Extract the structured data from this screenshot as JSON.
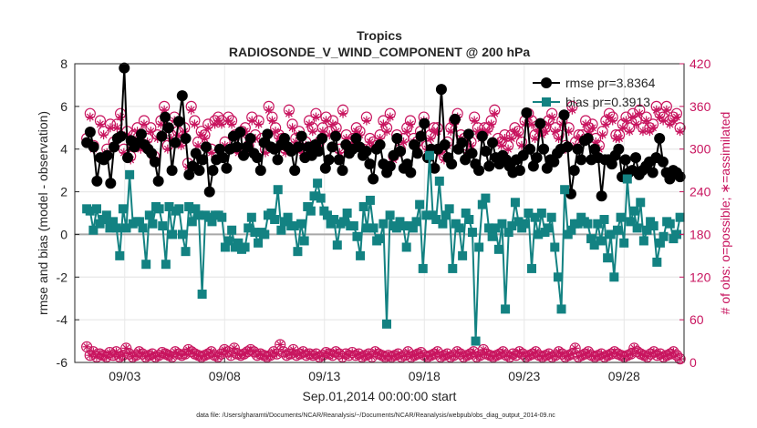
{
  "chart_data": {
    "type": "line",
    "title": "Tropics",
    "subtitle": "RADIOSONDE_V_WIND_COMPONENT @ 200 hPa",
    "xlabel": "Sep.01,2014 00:00:00 start",
    "ylabel_left": "rmse and bias (model - observation)",
    "ylabel_right": "# of obs: o=possible; ∗=assimilated",
    "footnote": "data file: /Users/gharamti/Documents/NCAR/Reanalysis/~/Documents/NCAR/Reanalysis/webpub/obs_diag_output_2014-09.nc",
    "xlim": [
      1,
      31.5
    ],
    "ylim_left": [
      -6,
      8
    ],
    "ylim_right": [
      0,
      420
    ],
    "x_ticks": [
      {
        "x": 3.5,
        "label": "09/03"
      },
      {
        "x": 8.5,
        "label": "09/08"
      },
      {
        "x": 13.5,
        "label": "09/13"
      },
      {
        "x": 18.5,
        "label": "09/18"
      },
      {
        "x": 23.5,
        "label": "09/23"
      },
      {
        "x": 28.5,
        "label": "09/28"
      }
    ],
    "y_ticks_left": [
      "-6",
      "-4",
      "-2",
      "0",
      "2",
      "4",
      "6",
      "8"
    ],
    "y_ticks_right": [
      "0",
      "60",
      "120",
      "180",
      "240",
      "300",
      "360",
      "420"
    ],
    "grid": true,
    "legend_position": "top-right",
    "colors": {
      "rmse": "#000000",
      "bias": "#138282",
      "obs": "#c8155f",
      "zero_line": "#a8a8a8",
      "grid": "#e8e8e8"
    },
    "series": [
      {
        "name": "rmse",
        "legend": "rmse pr=3.8364",
        "values": [
          4.3,
          4.8,
          4.1,
          2.5,
          3.6,
          3.5,
          3.7,
          2.4,
          4.1,
          4.5,
          4.6,
          7.8,
          3.6,
          4.4,
          4.1,
          4.3,
          4.7,
          4.2,
          4.0,
          3.8,
          3.4,
          2.5,
          4.6,
          5.5,
          5.0,
          3.0,
          4.3,
          5.3,
          6.5,
          4.5,
          2.8,
          3.2,
          3.8,
          3.0,
          3.5,
          4.1,
          2.0,
          3.0,
          3.5,
          4.0,
          3.6,
          3.1,
          4.0,
          4.6,
          4.1,
          4.8,
          3.7,
          4.1,
          4.5,
          3.8,
          3.6,
          3.0,
          4.3,
          4.7,
          4.1,
          4.0,
          3.5,
          4.2,
          4.5,
          4.1,
          3.9,
          3.0,
          4.1,
          4.6,
          3.6,
          4.1,
          3.7,
          4.2,
          3.9,
          4.5,
          3.1,
          3.5,
          4.1,
          4.6,
          3.5,
          3.0,
          4.2,
          3.8,
          4.0,
          4.5,
          4.1,
          3.7,
          3.9,
          3.3,
          2.6,
          4.0,
          4.2,
          3.3,
          2.9,
          3.2,
          3.7,
          4.5,
          3.9,
          3.1,
          3.3,
          2.9,
          4.2,
          3.8,
          4.6,
          5.2,
          3.6,
          4.0,
          3.1,
          4.0,
          6.8,
          4.2,
          3.6,
          3.3,
          5.4,
          4.0,
          4.3,
          3.5,
          4.7,
          3.8,
          3.3,
          3.0,
          4.6,
          3.9,
          3.2,
          4.3,
          3.6,
          3.3,
          3.7,
          3.5,
          3.2,
          2.9,
          3.5,
          3.0,
          3.7,
          5.7,
          4.0,
          3.2,
          3.6,
          5.2,
          4.0,
          3.1,
          3.5,
          3.4,
          3.8,
          4.0,
          5.6,
          4.1,
          1.9,
          3.0,
          4.0,
          3.5,
          4.4,
          4.5,
          3.5,
          4.0,
          3.6,
          1.8,
          3.5,
          3.5,
          3.3,
          3.7,
          4.0,
          2.7,
          3.5,
          2.9,
          3.0,
          3.6,
          2.8,
          3.0,
          3.2,
          3.4,
          2.9,
          3.6,
          4.5,
          3.4,
          2.9,
          2.6,
          3.0,
          2.9,
          2.7
        ]
      },
      {
        "name": "bias",
        "legend": "bias pr=0.3913",
        "values": [
          1.2,
          1.1,
          0.2,
          1.2,
          0.5,
          0.7,
          0.9,
          0.3,
          0.6,
          0.3,
          -1.0,
          1.2,
          0.3,
          2.8,
          0.5,
          0.6,
          0.6,
          0.3,
          -1.4,
          0.9,
          0.5,
          1.3,
          1.2,
          0.4,
          -1.4,
          1.3,
          0.0,
          1.1,
          1.2,
          0.0,
          -0.8,
          1.3,
          0.6,
          1.2,
          0.9,
          -2.8,
          0.9,
          0.8,
          0.6,
          0.9,
          0.9,
          0.8,
          -0.6,
          -0.3,
          0.2,
          -0.6,
          -0.4,
          -0.7,
          -0.6,
          0.3,
          0.8,
          0.1,
          -0.4,
          0.1,
          0.0,
          0.9,
          1.0,
          0.7,
          2.1,
          0.2,
          0.6,
          0.8,
          0.4,
          0.4,
          -0.8,
          0.5,
          -0.3,
          1.3,
          1.1,
          1.8,
          2.4,
          1.7,
          1.1,
          0.9,
          0.5,
          0.7,
          -0.5,
          0.5,
          0.6,
          1.0,
          0.4,
          0.4,
          -0.1,
          -1.0,
          1.3,
          0.3,
          1.6,
          0.3,
          -0.3,
          -0.2,
          0.5,
          -4.2,
          0.9,
          0.4,
          0.3,
          0.6,
          0.4,
          -0.6,
          0.4,
          0.3,
          0.6,
          1.4,
          -1.6,
          0.9,
          3.7,
          0.9,
          0.7,
          2.5,
          0.5,
          0.9,
          1.2,
          -1.6,
          0.5,
          0.3,
          -1.0,
          1.0,
          0.7,
          0.1,
          -5.0,
          -0.6,
          1.4,
          1.7,
          0.3,
          -0.1,
          0.3,
          -0.7,
          0.5,
          -3.5,
          0.1,
          0.4,
          1.5,
          0.6,
          0.3,
          0.5,
          1.0,
          -1.6,
          0.8,
          0.0,
          1.0,
          0.1,
          0.3,
          0.8,
          -0.6,
          -2.0,
          -3.5,
          2.1,
          0.0,
          0.2,
          0.5,
          0.5,
          0.8,
          0.6,
          0.5,
          -0.2,
          -0.5,
          0.5,
          -0.3,
          0.7,
          -1.1,
          0.0,
          -2.0,
          0.2,
          0.8,
          -0.4,
          2.6,
          0.6,
          1.1,
          0.3,
          1.5,
          -0.3,
          0.2,
          0.6,
          0.4,
          -1.3,
          -0.4,
          -0.1,
          0.6,
          0.5,
          -0.2,
          0.0,
          0.8
        ]
      },
      {
        "name": "obs_possible",
        "marker": "o",
        "values": [
          315,
          350,
          305,
          0,
          340,
          325,
          300,
          335,
          310,
          335,
          350,
          300,
          325,
          290,
          320,
          330,
          305,
          340,
          315,
          330,
          290,
          320,
          340,
          360,
          305,
          320,
          345,
          325,
          310,
          330,
          280,
          360,
          340,
          310,
          325,
          320,
          335,
          300,
          340,
          345,
          340,
          310,
          345,
          340,
          320,
          300,
          325,
          330,
          305,
          345,
          320,
          340,
          315,
          300,
          360,
          345,
          330,
          320,
          315,
          300,
          355,
          335,
          315,
          325,
          300,
          310,
          340,
          330,
          350,
          310,
          330,
          345,
          325,
          340,
          330,
          300,
          355,
          320,
          310,
          315,
          330,
          325,
          300,
          345,
          315,
          310,
          305,
          320,
          340,
          330,
          350,
          290,
          320,
          300,
          315,
          330,
          340,
          315,
          310,
          325,
          345,
          305,
          320,
          330,
          330,
          300,
          290,
          310,
          330,
          340,
          350,
          320,
          315,
          300,
          310,
          345,
          330,
          320,
          330,
          330,
          340,
          355,
          315,
          310,
          320,
          305,
          320,
          330,
          325,
          310,
          340,
          350,
          340,
          320,
          330,
          325,
          330,
          340,
          350,
          330,
          320,
          340,
          305,
          330,
          360,
          310,
          320,
          320,
          340,
          330,
          335,
          315,
          305,
          325,
          340,
          350,
          345,
          320,
          320,
          335,
          345,
          330,
          350,
          340,
          355,
          330,
          345,
          330,
          335,
          360,
          350,
          345,
          360,
          340,
          345,
          350,
          330
        ]
      },
      {
        "name": "obs_assimilated",
        "marker": "*",
        "values": [
          310,
          345,
          300,
          0,
          335,
          320,
          295,
          330,
          305,
          330,
          345,
          295,
          320,
          285,
          315,
          325,
          300,
          335,
          310,
          325,
          285,
          315,
          335,
          355,
          300,
          315,
          340,
          320,
          305,
          325,
          275,
          355,
          335,
          305,
          320,
          315,
          330,
          295,
          335,
          340,
          335,
          305,
          340,
          335,
          315,
          295,
          320,
          325,
          300,
          340,
          315,
          335,
          310,
          295,
          355,
          340,
          325,
          315,
          310,
          295,
          350,
          330,
          310,
          320,
          295,
          305,
          335,
          325,
          345,
          305,
          325,
          340,
          320,
          335,
          325,
          295,
          350,
          315,
          305,
          310,
          325,
          320,
          295,
          340,
          310,
          305,
          300,
          315,
          335,
          325,
          345,
          285,
          315,
          295,
          310,
          325,
          335,
          310,
          305,
          320,
          340,
          300,
          315,
          325,
          325,
          295,
          285,
          305,
          325,
          335,
          345,
          315,
          310,
          295,
          305,
          340,
          325,
          315,
          325,
          325,
          335,
          350,
          310,
          305,
          315,
          300,
          315,
          325,
          320,
          305,
          335,
          345,
          335,
          315,
          325,
          320,
          325,
          335,
          345,
          325,
          315,
          335,
          300,
          325,
          355,
          305,
          315,
          315,
          335,
          325,
          330,
          310,
          300,
          320,
          335,
          345,
          340,
          315,
          315,
          330,
          340,
          325,
          345,
          335,
          350,
          325,
          340,
          325,
          330,
          355,
          345,
          340,
          355,
          335,
          340,
          345,
          325
        ]
      },
      {
        "name": "obs_bottom_possible",
        "marker": "o",
        "values": [
          22,
          10,
          15,
          8,
          12,
          10,
          8,
          14,
          10,
          15,
          8,
          10,
          20,
          12,
          8,
          10,
          15,
          12,
          8,
          10,
          12,
          8,
          10,
          14,
          12,
          10,
          8,
          15,
          12,
          10,
          12,
          18,
          15,
          12,
          10,
          8,
          10,
          12,
          15,
          10,
          8,
          12,
          18,
          15,
          10,
          20,
          12,
          10,
          12,
          15,
          18,
          15,
          10,
          12,
          10,
          8,
          10,
          15,
          12,
          25,
          15,
          10,
          12,
          18,
          10,
          12,
          15,
          10,
          12,
          10,
          12,
          8,
          10,
          14,
          12,
          10,
          15,
          12,
          8,
          12,
          10,
          14,
          10,
          12,
          8,
          10,
          12,
          8,
          15,
          12,
          10,
          8,
          10,
          8,
          10,
          12,
          8,
          10,
          15,
          8,
          10,
          12,
          14,
          10,
          8,
          10,
          12,
          15,
          8,
          10,
          12,
          8,
          10,
          15,
          12,
          8,
          10,
          12,
          15,
          8,
          10,
          18,
          12,
          10,
          8,
          10,
          12,
          15,
          10,
          8,
          12,
          10,
          15,
          12,
          8,
          10,
          12,
          15,
          10,
          8,
          10,
          12,
          8,
          10,
          15,
          12,
          8,
          10,
          12,
          20,
          8,
          10,
          12,
          15,
          10,
          8,
          10,
          12,
          8,
          10,
          12,
          15,
          12,
          10,
          8,
          10,
          12,
          20,
          15,
          12,
          10,
          8,
          12,
          15,
          10,
          12,
          8,
          10,
          12,
          15,
          10,
          5
        ]
      }
    ]
  }
}
